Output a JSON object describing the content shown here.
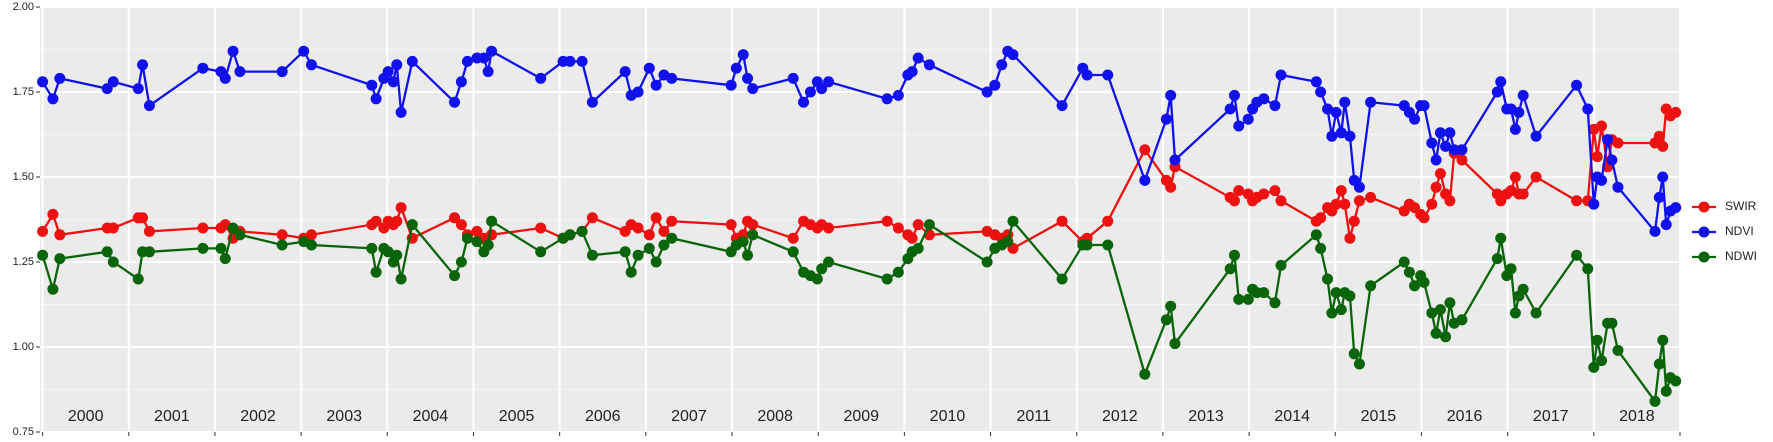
{
  "chart_data": {
    "type": "line",
    "x": [
      2000.0,
      2000.12,
      2000.2,
      2000.75,
      2000.82,
      2001.11,
      2001.16,
      2001.24,
      2001.86,
      2002.07,
      2002.12,
      2002.21,
      2002.29,
      2002.78,
      2003.03,
      2003.12,
      2003.82,
      2003.87,
      2003.96,
      2004.01,
      2004.07,
      2004.11,
      2004.16,
      2004.29,
      2004.78,
      2004.86,
      2004.93,
      2005.04,
      2005.12,
      2005.17,
      2005.21,
      2005.78,
      2006.04,
      2006.12,
      2006.26,
      2006.38,
      2006.76,
      2006.83,
      2006.91,
      2007.04,
      2007.12,
      2007.21,
      2007.3,
      2007.99,
      2008.05,
      2008.13,
      2008.18,
      2008.24,
      2008.71,
      2008.83,
      2008.91,
      2008.99,
      2009.04,
      2009.12,
      2009.8,
      2009.93,
      2010.04,
      2010.09,
      2010.16,
      2010.29,
      2010.96,
      2011.05,
      2011.13,
      2011.2,
      2011.26,
      2011.83,
      2012.07,
      2012.12,
      2012.36,
      2012.79,
      2013.04,
      2013.09,
      2013.14,
      2013.78,
      2013.83,
      2013.88,
      2013.99,
      2014.04,
      2014.09,
      2014.17,
      2014.3,
      2014.37,
      2014.78,
      2014.83,
      2014.91,
      2014.96,
      2015.01,
      2015.07,
      2015.11,
      2015.17,
      2015.22,
      2015.28,
      2015.41,
      2015.8,
      2015.86,
      2015.92,
      2015.99,
      2016.03,
      2016.12,
      2016.17,
      2016.22,
      2016.28,
      2016.33,
      2016.38,
      2016.47,
      2016.88,
      2016.92,
      2016.99,
      2017.04,
      2017.09,
      2017.13,
      2017.18,
      2017.33,
      2017.8,
      2017.93,
      2018.0,
      2018.04,
      2018.09,
      2018.16,
      2018.21,
      2018.28,
      2018.71,
      2018.76,
      2018.8,
      2018.84,
      2018.89,
      2018.95
    ],
    "series": [
      {
        "name": "SWIR",
        "color": "#ee1111",
        "values": [
          1.34,
          1.39,
          1.33,
          1.35,
          1.35,
          1.38,
          1.38,
          1.34,
          1.35,
          1.35,
          1.36,
          1.32,
          1.34,
          1.33,
          1.32,
          1.33,
          1.36,
          1.37,
          1.35,
          1.37,
          1.36,
          1.37,
          1.41,
          1.32,
          1.38,
          1.36,
          1.33,
          1.34,
          1.32,
          1.3,
          1.33,
          1.35,
          1.32,
          1.33,
          1.34,
          1.38,
          1.34,
          1.36,
          1.35,
          1.33,
          1.38,
          1.34,
          1.37,
          1.36,
          1.32,
          1.33,
          1.37,
          1.36,
          1.32,
          1.37,
          1.36,
          1.35,
          1.36,
          1.35,
          1.37,
          1.35,
          1.33,
          1.32,
          1.36,
          1.33,
          1.34,
          1.33,
          1.32,
          1.33,
          1.29,
          1.37,
          1.31,
          1.32,
          1.37,
          1.58,
          1.49,
          1.47,
          1.53,
          1.44,
          1.43,
          1.46,
          1.45,
          1.43,
          1.44,
          1.45,
          1.46,
          1.43,
          1.37,
          1.38,
          1.41,
          1.4,
          1.42,
          1.46,
          1.42,
          1.32,
          1.37,
          1.43,
          1.44,
          1.4,
          1.42,
          1.41,
          1.39,
          1.38,
          1.42,
          1.47,
          1.51,
          1.45,
          1.43,
          1.57,
          1.55,
          1.45,
          1.43,
          1.45,
          1.46,
          1.5,
          1.45,
          1.45,
          1.5,
          1.43,
          1.43,
          1.64,
          1.56,
          1.65,
          1.53,
          1.61,
          1.6,
          1.6,
          1.62,
          1.59,
          1.7,
          1.68,
          1.69
        ]
      },
      {
        "name": "NDVI",
        "color": "#1111ee",
        "values": [
          1.78,
          1.73,
          1.79,
          1.76,
          1.78,
          1.76,
          1.83,
          1.71,
          1.82,
          1.81,
          1.79,
          1.87,
          1.81,
          1.81,
          1.87,
          1.83,
          1.77,
          1.73,
          1.79,
          1.81,
          1.78,
          1.83,
          1.69,
          1.84,
          1.72,
          1.78,
          1.84,
          1.85,
          1.85,
          1.81,
          1.87,
          1.79,
          1.84,
          1.84,
          1.84,
          1.72,
          1.81,
          1.74,
          1.75,
          1.82,
          1.77,
          1.8,
          1.79,
          1.77,
          1.82,
          1.86,
          1.79,
          1.76,
          1.79,
          1.72,
          1.75,
          1.78,
          1.76,
          1.78,
          1.73,
          1.74,
          1.8,
          1.81,
          1.85,
          1.83,
          1.75,
          1.77,
          1.83,
          1.87,
          1.86,
          1.71,
          1.82,
          1.8,
          1.8,
          1.49,
          1.67,
          1.74,
          1.55,
          1.7,
          1.74,
          1.65,
          1.67,
          1.7,
          1.72,
          1.73,
          1.71,
          1.8,
          1.78,
          1.75,
          1.7,
          1.62,
          1.69,
          1.63,
          1.72,
          1.62,
          1.49,
          1.47,
          1.72,
          1.71,
          1.69,
          1.67,
          1.71,
          1.71,
          1.6,
          1.55,
          1.63,
          1.59,
          1.63,
          1.58,
          1.58,
          1.75,
          1.78,
          1.7,
          1.7,
          1.64,
          1.69,
          1.74,
          1.62,
          1.77,
          1.7,
          1.42,
          1.5,
          1.49,
          1.61,
          1.55,
          1.47,
          1.34,
          1.44,
          1.5,
          1.36,
          1.4,
          1.41
        ]
      },
      {
        "name": "NDWI",
        "color": "#0a640a",
        "values": [
          1.27,
          1.17,
          1.26,
          1.28,
          1.25,
          1.2,
          1.28,
          1.28,
          1.29,
          1.29,
          1.26,
          1.35,
          1.33,
          1.3,
          1.31,
          1.3,
          1.29,
          1.22,
          1.29,
          1.28,
          1.25,
          1.27,
          1.2,
          1.36,
          1.21,
          1.25,
          1.32,
          1.31,
          1.28,
          1.3,
          1.37,
          1.28,
          1.32,
          1.33,
          1.34,
          1.27,
          1.28,
          1.22,
          1.27,
          1.29,
          1.25,
          1.3,
          1.32,
          1.28,
          1.3,
          1.31,
          1.27,
          1.33,
          1.28,
          1.22,
          1.21,
          1.2,
          1.23,
          1.25,
          1.2,
          1.22,
          1.26,
          1.28,
          1.29,
          1.36,
          1.25,
          1.29,
          1.3,
          1.31,
          1.37,
          1.2,
          1.3,
          1.3,
          1.3,
          0.92,
          1.08,
          1.12,
          1.01,
          1.23,
          1.27,
          1.14,
          1.14,
          1.17,
          1.16,
          1.16,
          1.13,
          1.24,
          1.33,
          1.29,
          1.2,
          1.1,
          1.16,
          1.11,
          1.16,
          1.15,
          0.98,
          0.95,
          1.18,
          1.25,
          1.22,
          1.18,
          1.21,
          1.19,
          1.1,
          1.04,
          1.11,
          1.03,
          1.13,
          1.07,
          1.08,
          1.26,
          1.32,
          1.21,
          1.23,
          1.1,
          1.15,
          1.17,
          1.1,
          1.27,
          1.23,
          0.94,
          1.02,
          0.96,
          1.07,
          1.07,
          0.99,
          0.84,
          0.95,
          1.02,
          0.87,
          0.91,
          0.9
        ]
      }
    ],
    "xlim": [
      1999.97,
      2019.0
    ],
    "xticks": [
      2000,
      2001,
      2002,
      2003,
      2004,
      2005,
      2006,
      2007,
      2008,
      2009,
      2010,
      2011,
      2012,
      2013,
      2014,
      2015,
      2016,
      2017,
      2018,
      2019
    ],
    "year_labels": [
      "2000",
      "2001",
      "2002",
      "2003",
      "2004",
      "2005",
      "2006",
      "2007",
      "2008",
      "2009",
      "2010",
      "2011",
      "2012",
      "2013",
      "2014",
      "2015",
      "2016",
      "2017",
      "2018"
    ],
    "ylim": [
      0.75,
      2.0
    ],
    "yticks": [
      {
        "value": 0.75,
        "label": "0.75"
      },
      {
        "value": 1,
        "label": "1.00"
      },
      {
        "value": 1.25,
        "label": "1.25"
      },
      {
        "value": 1.5,
        "label": "1.50"
      },
      {
        "value": 1.75,
        "label": "1.75"
      },
      {
        "value": 2,
        "label": "2.00"
      }
    ],
    "grid": true,
    "legend": "right"
  }
}
